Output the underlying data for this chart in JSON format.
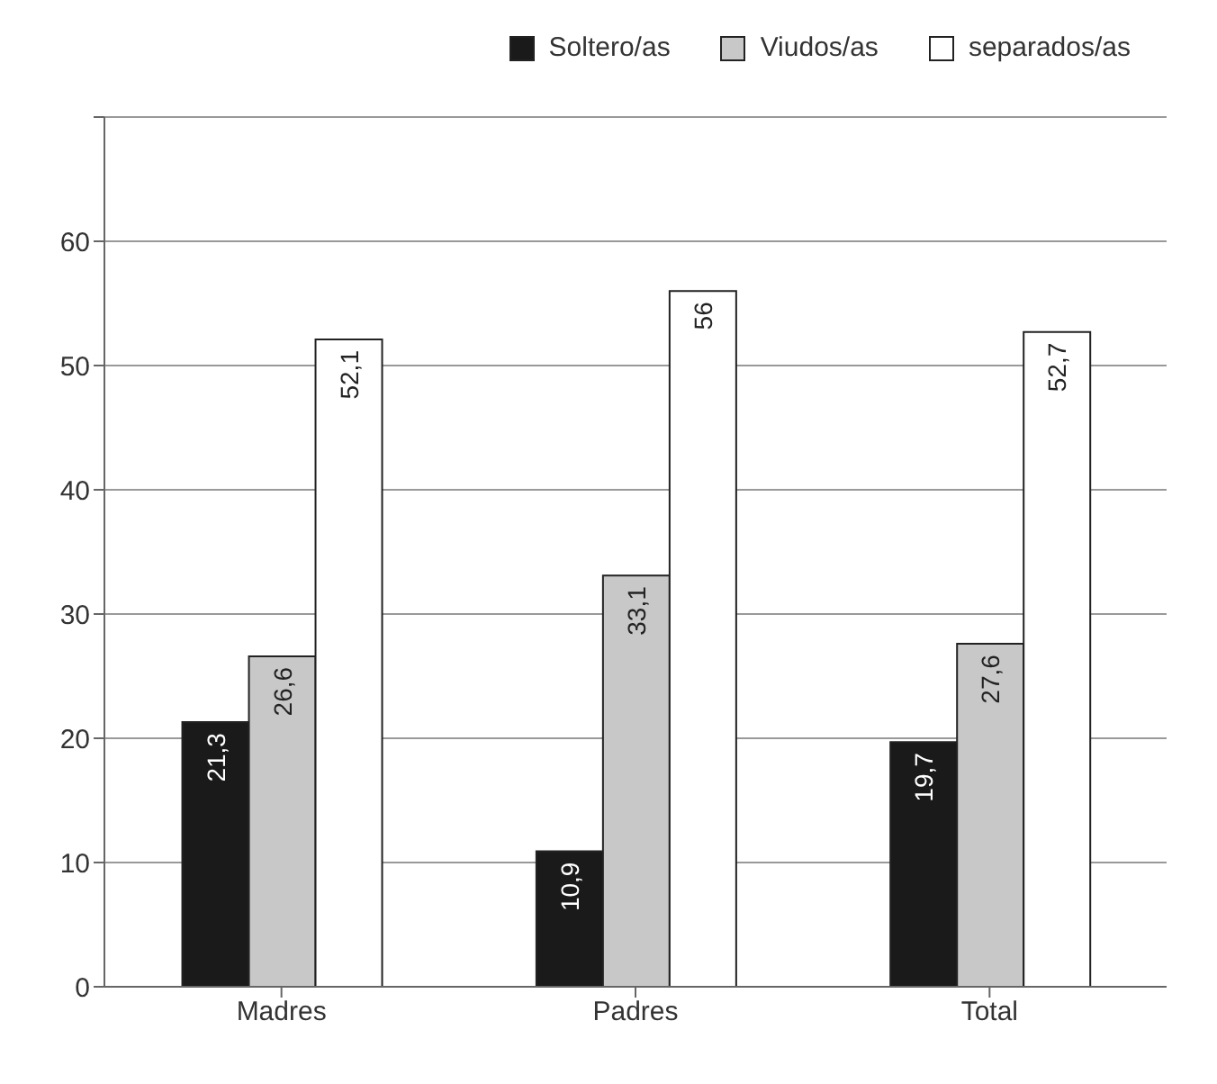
{
  "chart_data": {
    "type": "bar",
    "categories": [
      "Madres",
      "Padres",
      "Total"
    ],
    "series": [
      {
        "name": "Soltero/as",
        "color": "#1a1a1a",
        "values": [
          21.3,
          10.9,
          19.7
        ],
        "value_labels": [
          "21,3",
          "10,9",
          "19,7"
        ]
      },
      {
        "name": "Viudos/as",
        "color": "#c8c8c8",
        "values": [
          26.6,
          33.1,
          27.6
        ],
        "value_labels": [
          "26,6",
          "33,1",
          "27,6"
        ]
      },
      {
        "name": "separados/as",
        "color": "#ffffff",
        "values": [
          52.1,
          56,
          52.7
        ],
        "value_labels": [
          "52,1",
          "56",
          "52,7"
        ]
      }
    ],
    "ylim": [
      0,
      70
    ],
    "yticks": [
      0,
      10,
      20,
      30,
      40,
      50,
      60,
      {
        "value": 70,
        "label": null
      }
    ],
    "grid": "y",
    "legend": "top right"
  }
}
